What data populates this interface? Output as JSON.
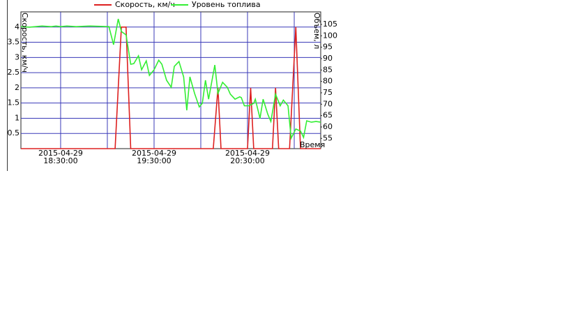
{
  "chart_data": {
    "type": "line",
    "x_label": "Время",
    "y_label": "Скорость, км/ч",
    "y2_label": "Объем, л",
    "xlim": [
      "2015-04-29 18:04:30",
      "2015-04-29 21:17:00"
    ],
    "xticks": [
      {
        "value": "2015-04-29 18:30:00",
        "label": "2015-04-29\n18:30:00"
      },
      {
        "value": "2015-04-29 19:30:00",
        "label": "2015-04-29\n19:30:00"
      },
      {
        "value": "2015-04-29 20:30:00",
        "label": "2015-04-29\n20:30:00"
      }
    ],
    "x_minor_ticks": [
      "2015-04-29 19:00:00",
      "2015-04-29 20:00:00",
      "2015-04-29 21:00:00"
    ],
    "ylim": [
      0,
      4.5
    ],
    "yticks": [
      0.5,
      1,
      1.5,
      2,
      2.5,
      3,
      3.5,
      4
    ],
    "y2lim": [
      50.5,
      110.5
    ],
    "y2ticks": [
      55,
      60,
      65,
      70,
      75,
      80,
      85,
      90,
      95,
      100,
      105
    ],
    "grid": true,
    "legend": "top",
    "series": [
      {
        "name": "Скорость, км/ч",
        "color": "#dd2020",
        "x": [
          "2015-04-29 18:04:30",
          "2015-04-29 19:05:00",
          "2015-04-29 19:09:00",
          "2015-04-29 19:12:00",
          "2015-04-29 19:15:00",
          "2015-04-29 20:08:00",
          "2015-04-29 20:11:00",
          "2015-04-29 20:13:00",
          "2015-04-29 20:30:00",
          "2015-04-29 20:32:00",
          "2015-04-29 20:34:00",
          "2015-04-29 20:46:00",
          "2015-04-29 20:48:00",
          "2015-04-29 20:50:00",
          "2015-04-29 20:57:00",
          "2015-04-29 21:01:00",
          "2015-04-29 21:04:00",
          "2015-04-29 21:17:00"
        ],
        "values": [
          0,
          0,
          4,
          4,
          0,
          0,
          2,
          0,
          0,
          2,
          0,
          0,
          2,
          0,
          0,
          4,
          0,
          0
        ]
      },
      {
        "name": "Уровень топлива",
        "color": "#33ee33",
        "axis": "y2",
        "x": [
          "2015-04-29 18:04:30",
          "2015-04-29 18:10:00",
          "2015-04-29 18:18:00",
          "2015-04-29 18:24:00",
          "2015-04-29 18:27:00",
          "2015-04-29 18:30:00",
          "2015-04-29 18:34:00",
          "2015-04-29 18:40:00",
          "2015-04-29 18:49:00",
          "2015-04-29 19:01:00",
          "2015-04-29 19:04:00",
          "2015-04-29 19:07:00",
          "2015-04-29 19:09:00",
          "2015-04-29 19:12:00",
          "2015-04-29 19:15:00",
          "2015-04-29 19:17:00",
          "2015-04-29 19:20:00",
          "2015-04-29 19:22:00",
          "2015-04-29 19:25:00",
          "2015-04-29 19:27:00",
          "2015-04-29 19:30:00",
          "2015-04-29 19:33:00",
          "2015-04-29 19:35:00",
          "2015-04-29 19:38:00",
          "2015-04-29 19:41:00",
          "2015-04-29 19:43:00",
          "2015-04-29 19:46:00",
          "2015-04-29 19:49:00",
          "2015-04-29 19:51:00",
          "2015-04-29 19:53:00",
          "2015-04-29 19:56:00",
          "2015-04-29 19:59:00",
          "2015-04-29 20:01:00",
          "2015-04-29 20:03:00",
          "2015-04-29 20:05:00",
          "2015-04-29 20:09:00",
          "2015-04-29 20:11:00",
          "2015-04-29 20:14:00",
          "2015-04-29 20:17:00",
          "2015-04-29 20:19:00",
          "2015-04-29 20:22:00",
          "2015-04-29 20:25:00",
          "2015-04-29 20:26:00",
          "2015-04-29 20:28:00",
          "2015-04-29 20:31:00",
          "2015-04-29 20:34:00",
          "2015-04-29 20:35:00",
          "2015-04-29 20:38:00",
          "2015-04-29 20:40:00",
          "2015-04-29 20:43:00",
          "2015-04-29 20:45:00",
          "2015-04-29 20:48:00",
          "2015-04-29 20:51:00",
          "2015-04-29 20:53:00",
          "2015-04-29 20:56:00",
          "2015-04-29 20:58:00",
          "2015-04-29 21:01:00",
          "2015-04-29 21:04:00",
          "2015-04-29 21:06:00",
          "2015-04-29 21:08:00",
          "2015-04-29 21:11:00",
          "2015-04-29 21:14:00",
          "2015-04-29 21:17:00"
        ],
        "values": [
          104.0,
          103.8,
          104.3,
          104.0,
          104.3,
          104.0,
          104.3,
          104.0,
          104.3,
          104.0,
          96.1,
          107.4,
          101.9,
          100.4,
          87.5,
          87.8,
          91.2,
          85.1,
          89.0,
          82.6,
          85.1,
          89.3,
          87.5,
          80.5,
          77.4,
          86.6,
          88.7,
          82.0,
          67.3,
          82.0,
          74.7,
          68.8,
          70.4,
          80.5,
          72.2,
          87.2,
          74.7,
          79.6,
          77.4,
          74.4,
          72.2,
          73.2,
          72.9,
          69.3,
          69.3,
          70.4,
          72.2,
          63.8,
          72.2,
          65.6,
          62.4,
          74.4,
          69.3,
          71.8,
          69.3,
          55.1,
          59.1,
          58.2,
          55.4,
          62.7,
          62.1,
          62.4,
          62.1
        ]
      }
    ]
  }
}
